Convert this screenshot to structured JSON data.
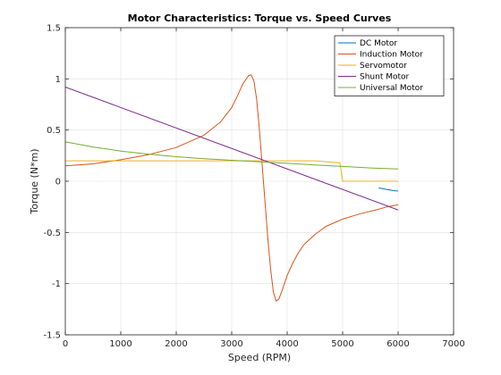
{
  "chart_data": {
    "type": "line",
    "title": "Motor Characteristics: Torque vs. Speed Curves",
    "xlabel": "Speed (RPM)",
    "ylabel": "Torque (N*m)",
    "xlim": [
      0,
      7000
    ],
    "ylim": [
      -1.5,
      1.5
    ],
    "xticks": [
      0,
      1000,
      2000,
      3000,
      4000,
      5000,
      6000,
      7000
    ],
    "xtick_labels": [
      "0",
      "1000",
      "2000",
      "3000",
      "4000",
      "5000",
      "6000",
      "7000"
    ],
    "yticks": [
      -1.5,
      -1,
      -0.5,
      0,
      0.5,
      1,
      1.5
    ],
    "ytick_labels": [
      "-1.5",
      "-1",
      "-0.5",
      "0",
      "0.5",
      "1",
      "1.5"
    ],
    "grid": true,
    "legend_position": "top-right",
    "series": [
      {
        "name": "DC Motor",
        "color": "#0072BD",
        "x": [
          5650,
          5700,
          5750,
          5800,
          5850,
          5900,
          5950,
          6000
        ],
        "y": [
          -0.065,
          -0.07,
          -0.075,
          -0.08,
          -0.085,
          -0.09,
          -0.093,
          -0.095
        ]
      },
      {
        "name": "Induction Motor",
        "color": "#D95319",
        "x": [
          0,
          500,
          1000,
          1500,
          2000,
          2500,
          2800,
          3000,
          3100,
          3200,
          3300,
          3350,
          3400,
          3450,
          3500,
          3550,
          3600,
          3650,
          3700,
          3750,
          3800,
          3850,
          3900,
          3950,
          4000,
          4100,
          4200,
          4300,
          4500,
          4700,
          5000,
          5300,
          5600,
          5800,
          6000
        ],
        "y": [
          0.15,
          0.17,
          0.21,
          0.26,
          0.33,
          0.45,
          0.58,
          0.72,
          0.83,
          0.95,
          1.03,
          1.04,
          0.98,
          0.8,
          0.5,
          0.15,
          -0.2,
          -0.55,
          -0.85,
          -1.08,
          -1.17,
          -1.15,
          -1.08,
          -1.0,
          -0.92,
          -0.8,
          -0.7,
          -0.62,
          -0.52,
          -0.44,
          -0.37,
          -0.32,
          -0.28,
          -0.25,
          -0.23
        ]
      },
      {
        "name": "Servomotor",
        "color": "#EDB120",
        "x": [
          0,
          1000,
          2000,
          3000,
          4000,
          4500,
          4950,
          5000,
          5500,
          6000
        ],
        "y": [
          0.2,
          0.2,
          0.2,
          0.2,
          0.2,
          0.2,
          0.18,
          0.0,
          0.0,
          0.0
        ]
      },
      {
        "name": "Shunt Motor",
        "color": "#7E2F8E",
        "x": [
          0,
          6000
        ],
        "y": [
          0.92,
          -0.28
        ]
      },
      {
        "name": "Universal Motor",
        "color": "#77AC30",
        "x": [
          0,
          500,
          1000,
          1500,
          2000,
          2500,
          3000,
          3500,
          4000,
          4500,
          5000,
          5500,
          6000
        ],
        "y": [
          0.385,
          0.335,
          0.295,
          0.265,
          0.24,
          0.22,
          0.205,
          0.19,
          0.175,
          0.16,
          0.145,
          0.13,
          0.12
        ]
      }
    ]
  }
}
